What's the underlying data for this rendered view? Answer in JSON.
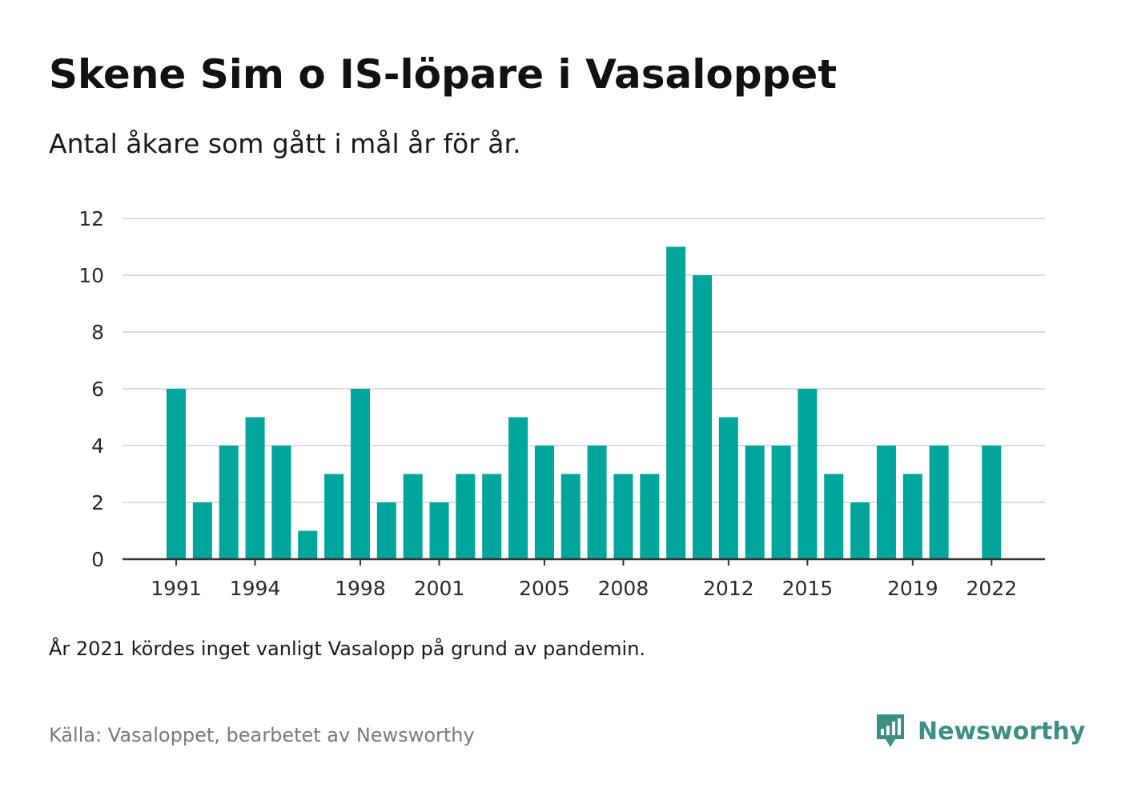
{
  "title": "Skene Sim o IS-löpare i Vasaloppet",
  "subtitle": "Antal åkare som gått i mål år för år.",
  "note": "År 2021 kördes inget vanligt Vasalopp på grund av pandemin.",
  "source": "Källa: Vasaloppet, bearbetet av Newsworthy",
  "brand": {
    "name": "Newsworthy",
    "icon": "newsworthy-logo-icon",
    "color": "#3b8f84"
  },
  "chart_data": {
    "type": "bar",
    "categories": [
      "1991",
      "1992",
      "1993",
      "1994",
      "1995",
      "1996",
      "1997",
      "1998",
      "1999",
      "2000",
      "2001",
      "2002",
      "2003",
      "2004",
      "2005",
      "2006",
      "2007",
      "2008",
      "2009",
      "2010",
      "2011",
      "2012",
      "2013",
      "2014",
      "2015",
      "2016",
      "2017",
      "2018",
      "2019",
      "2020",
      "2021",
      "2022"
    ],
    "values": [
      6,
      2,
      4,
      5,
      4,
      1,
      3,
      6,
      2,
      3,
      2,
      3,
      3,
      5,
      4,
      3,
      4,
      3,
      3,
      11,
      10,
      5,
      4,
      4,
      6,
      3,
      2,
      4,
      3,
      4,
      null,
      4
    ],
    "x_tick_labels": [
      "1991",
      "1994",
      "1998",
      "2001",
      "2005",
      "2008",
      "2012",
      "2015",
      "2019",
      "2022"
    ],
    "y_ticks": [
      0,
      2,
      4,
      6,
      8,
      10,
      12
    ],
    "ylim": [
      0,
      12
    ],
    "bar_color": "#00a59b",
    "grid": true,
    "grid_color": "#dddddd",
    "axis_color": "#333333",
    "xlabel": "",
    "ylabel": ""
  }
}
